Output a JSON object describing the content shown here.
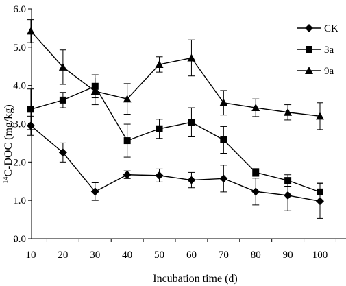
{
  "chart_data": {
    "type": "line",
    "title": "",
    "xlabel": "Incubation time (d)",
    "ylabel_sup": "14",
    "ylabel": "C-DOC (mg/kg)",
    "x": [
      10,
      20,
      30,
      40,
      50,
      60,
      70,
      80,
      90,
      100
    ],
    "xtick_labels": [
      "10",
      "20",
      "30",
      "40",
      "50",
      "60",
      "70",
      "80",
      "90",
      "100"
    ],
    "ylim": [
      0,
      6
    ],
    "yticks": [
      0,
      1,
      2,
      3,
      4,
      5,
      6
    ],
    "ytick_labels": [
      "0.0",
      "1.0",
      "2.0",
      "3.0",
      "4.0",
      "5.0",
      "6.0"
    ],
    "grid": false,
    "legend_position": "top-right",
    "color": "#000000",
    "series": [
      {
        "name": "CK",
        "marker": "diamond",
        "values": [
          2.95,
          2.25,
          1.23,
          1.67,
          1.65,
          1.53,
          1.57,
          1.23,
          1.13,
          0.98
        ],
        "errors": [
          0.25,
          0.25,
          0.23,
          0.1,
          0.17,
          0.2,
          0.35,
          0.35,
          0.4,
          0.45
        ]
      },
      {
        "name": "3a",
        "marker": "square",
        "values": [
          3.38,
          3.62,
          3.98,
          2.56,
          2.87,
          3.04,
          2.58,
          1.73,
          1.52,
          1.22
        ],
        "errors": [
          0.53,
          0.2,
          0.3,
          0.43,
          0.25,
          0.38,
          0.35,
          0.1,
          0.15,
          0.23
        ]
      },
      {
        "name": "9a",
        "marker": "triangle",
        "values": [
          5.42,
          4.48,
          3.85,
          3.65,
          4.55,
          4.72,
          3.55,
          3.42,
          3.3,
          3.2
        ],
        "errors": [
          0.3,
          0.45,
          0.35,
          0.4,
          0.2,
          0.47,
          0.32,
          0.23,
          0.2,
          0.35
        ]
      }
    ]
  }
}
